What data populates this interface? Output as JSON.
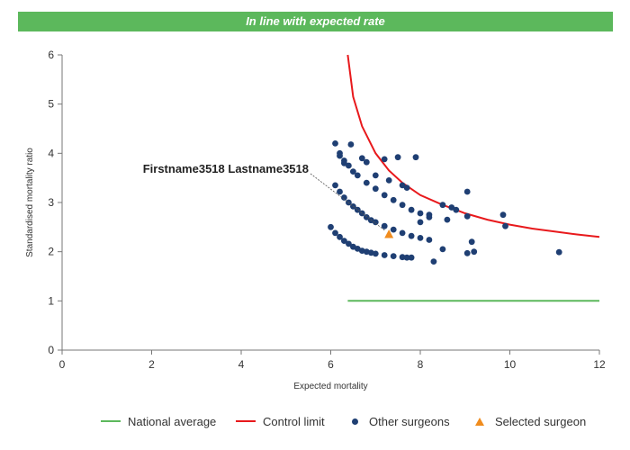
{
  "banner": {
    "text": "In line with expected rate"
  },
  "colors": {
    "banner": "#5cb85c",
    "national_average": "#5cb85c",
    "control_limit": "#e8191c",
    "other_surgeons": "#1f3f73",
    "selected_surgeon": "#f08c1e"
  },
  "chart_data": {
    "type": "scatter",
    "xlabel": "Expected mortality",
    "ylabel": "Standardised mortality ratio",
    "xlim": [
      0,
      12
    ],
    "ylim": [
      0,
      6
    ],
    "x_ticks": [
      "0",
      "2",
      "4",
      "6",
      "8",
      "10",
      "12"
    ],
    "y_ticks": [
      "0",
      "1",
      "2",
      "3",
      "4",
      "5",
      "6"
    ],
    "grid": false,
    "legend_position": "bottom",
    "annotation": {
      "text": "Firstname3518 Lastname3518",
      "x": 7.3,
      "y": 2.35
    },
    "series": [
      {
        "name": "National average",
        "type": "line",
        "x": [
          6.38,
          12
        ],
        "y": [
          1,
          1
        ]
      },
      {
        "name": "Control limit",
        "type": "line",
        "x": [
          6.38,
          6.5,
          6.7,
          7.0,
          7.3,
          7.6,
          8.0,
          8.5,
          9.0,
          9.5,
          10.0,
          10.5,
          11.0,
          11.5,
          12.0
        ],
        "y": [
          6.0,
          5.15,
          4.55,
          4.0,
          3.65,
          3.4,
          3.15,
          2.95,
          2.78,
          2.65,
          2.55,
          2.47,
          2.41,
          2.35,
          2.3
        ]
      },
      {
        "name": "Other surgeons",
        "type": "scatter",
        "x": [
          6.0,
          6.1,
          6.2,
          6.3,
          6.4,
          6.5,
          6.6,
          6.7,
          6.8,
          6.9,
          7.0,
          7.2,
          7.4,
          7.6,
          7.8,
          6.1,
          6.2,
          6.3,
          6.4,
          6.5,
          6.6,
          6.7,
          6.8,
          6.9,
          7.0,
          7.2,
          7.4,
          7.6,
          7.8,
          8.0,
          8.2,
          6.2,
          6.3,
          6.4,
          6.5,
          6.6,
          6.8,
          7.0,
          7.2,
          7.4,
          7.6,
          7.8,
          8.0,
          8.2,
          6.1,
          6.2,
          6.3,
          6.45,
          6.7,
          6.8,
          7.2,
          7.5,
          7.9,
          7.0,
          7.3,
          7.6,
          7.7,
          8.0,
          8.2,
          8.5,
          8.6,
          8.7,
          8.8,
          9.05,
          9.05,
          9.15,
          9.2,
          9.05,
          9.85,
          9.9,
          11.1,
          7.7,
          8.3,
          8.5
        ],
        "y": [
          2.5,
          2.38,
          2.3,
          2.22,
          2.16,
          2.1,
          2.06,
          2.02,
          2.0,
          1.98,
          1.96,
          1.93,
          1.91,
          1.89,
          1.88,
          3.35,
          3.22,
          3.1,
          3.0,
          2.92,
          2.85,
          2.78,
          2.7,
          2.64,
          2.6,
          2.52,
          2.45,
          2.38,
          2.32,
          2.28,
          2.24,
          3.95,
          3.85,
          3.75,
          3.63,
          3.55,
          3.4,
          3.28,
          3.15,
          3.05,
          2.95,
          2.85,
          2.78,
          2.7,
          4.2,
          4.0,
          3.8,
          4.18,
          3.9,
          3.82,
          3.88,
          3.92,
          3.92,
          3.55,
          3.45,
          3.35,
          3.3,
          2.6,
          2.75,
          2.95,
          2.65,
          2.9,
          2.85,
          3.22,
          2.72,
          2.2,
          2.0,
          1.97,
          2.75,
          2.52,
          1.99,
          1.88,
          1.8,
          2.05
        ]
      },
      {
        "name": "Selected surgeon",
        "type": "scatter",
        "x": [
          7.3
        ],
        "y": [
          2.35
        ]
      }
    ]
  }
}
